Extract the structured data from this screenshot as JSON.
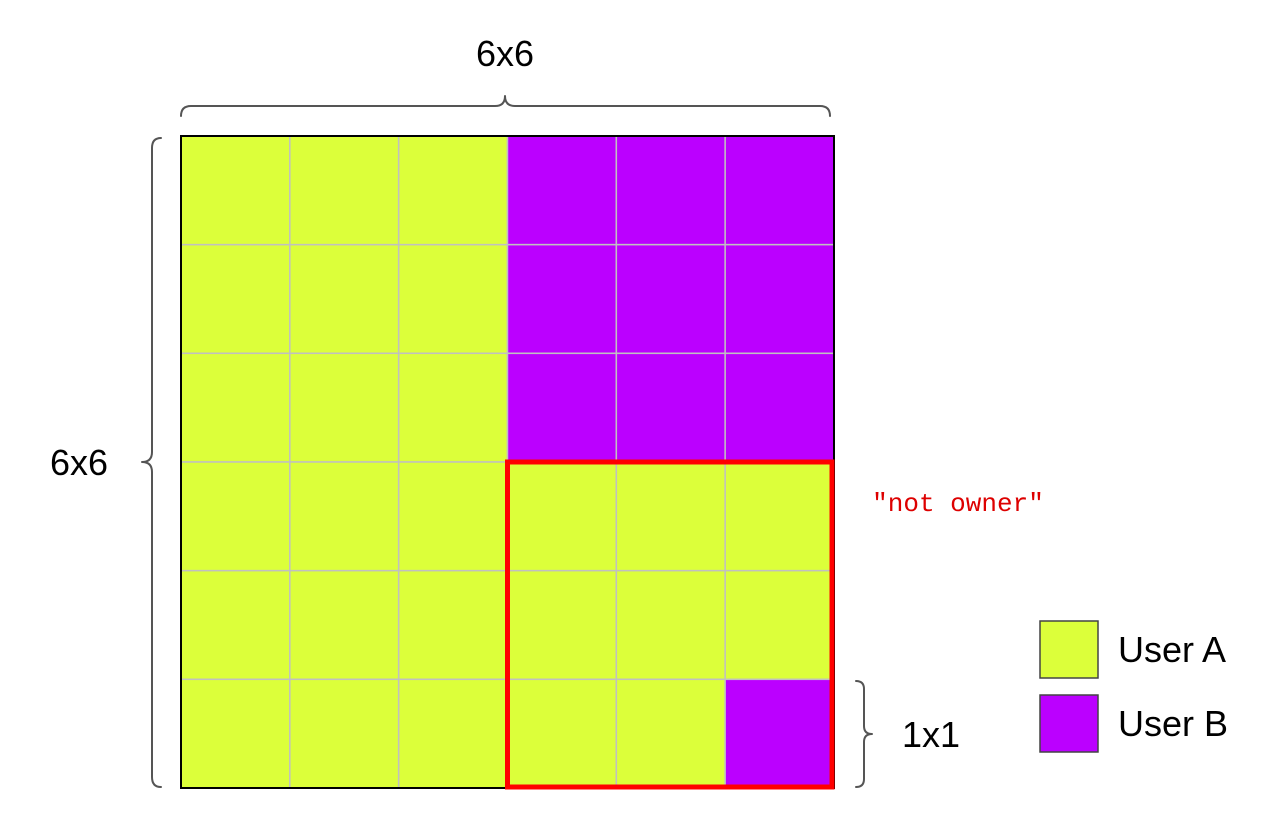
{
  "grid": {
    "rows": 6,
    "cols": 6,
    "cells": [
      [
        "A",
        "A",
        "A",
        "B",
        "B",
        "B"
      ],
      [
        "A",
        "A",
        "A",
        "B",
        "B",
        "B"
      ],
      [
        "A",
        "A",
        "A",
        "B",
        "B",
        "B"
      ],
      [
        "A",
        "A",
        "A",
        "A",
        "A",
        "A"
      ],
      [
        "A",
        "A",
        "A",
        "A",
        "A",
        "A"
      ],
      [
        "A",
        "A",
        "A",
        "A",
        "A",
        "B"
      ]
    ],
    "highlight": {
      "row_start": 3,
      "col_start": 3,
      "rows": 3,
      "cols": 3
    }
  },
  "labels": {
    "top_dimension": "6x6",
    "left_dimension": "6x6",
    "small_dimension": "1x1",
    "note": "\"not owner\""
  },
  "legend": [
    {
      "key": "A",
      "label": "User A"
    },
    {
      "key": "B",
      "label": "User B"
    }
  ],
  "colors": {
    "A": "#dcff3a",
    "B": "#bb00ff",
    "highlight": "#ff0000",
    "note": "#dd0000",
    "gridline": "#c0c0c0",
    "border": "#000000"
  }
}
